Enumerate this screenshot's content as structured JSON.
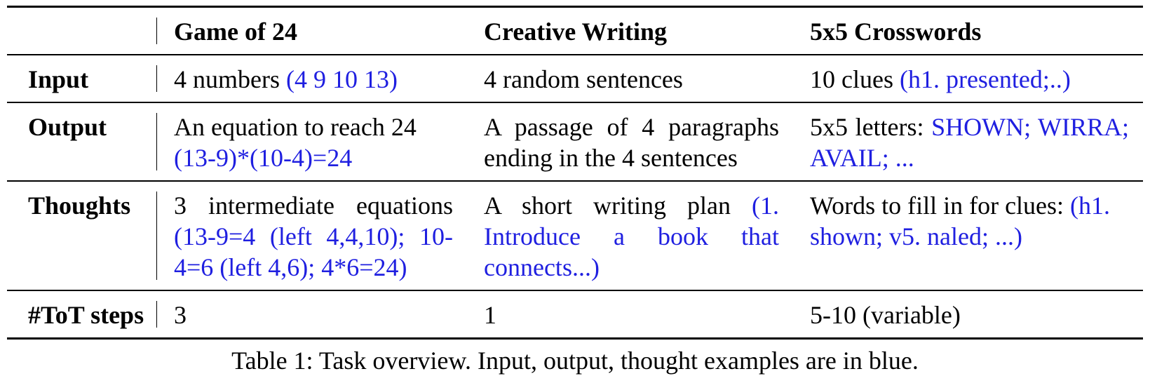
{
  "table": {
    "headers": [
      "",
      "Game of 24",
      "Creative Writing",
      "5x5 Crosswords"
    ],
    "rows": [
      {
        "label": "Input",
        "cells": [
          {
            "text": "4 numbers ",
            "example": "(4 9 10 13)"
          },
          {
            "text": "4 random sentences",
            "example": ""
          },
          {
            "text": "10 clues ",
            "example": "(h1. presented;..)"
          }
        ]
      },
      {
        "label": "Output",
        "cells": [
          {
            "text": "An equation to reach 24 ",
            "example": "(13-9)*(10-4)=24"
          },
          {
            "text": "A passage of 4 paragraphs ending in the 4 sentences",
            "example": ""
          },
          {
            "text": "5x5 letters: ",
            "example": "SHOWN; WIRRA; AVAIL; ..."
          }
        ]
      },
      {
        "label": "Thoughts",
        "cells": [
          {
            "text": "3 intermediate equations ",
            "example": "(13-9=4 (left 4,4,10); 10-4=6 (left 4,6); 4*6=24)"
          },
          {
            "text": "A short writing plan ",
            "example": "(1. Introduce a book that connects...)"
          },
          {
            "text": "Words to fill in for clues: ",
            "example": "(h1. shown; v5. naled; ...)"
          }
        ]
      },
      {
        "label": "#ToT steps",
        "cells": [
          {
            "text": "3",
            "example": ""
          },
          {
            "text": "1",
            "example": ""
          },
          {
            "text": "5-10 (variable)",
            "example": ""
          }
        ]
      }
    ]
  },
  "caption": "Table 1: Task overview. Input, output, thought examples are in blue.",
  "colors": {
    "example_text": "#1f1fe0",
    "text": "#000000",
    "rules": "#000000"
  }
}
